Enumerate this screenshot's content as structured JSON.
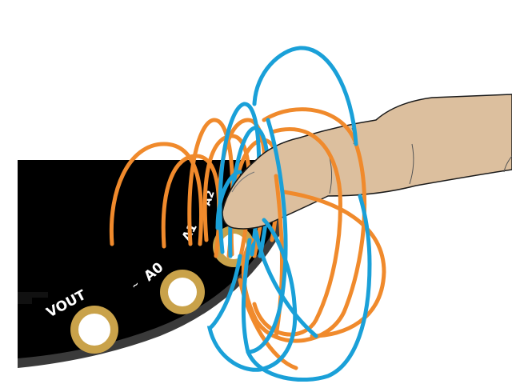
{
  "board": {
    "pad_labels": {
      "vout": "VOUT",
      "a0": "A0",
      "a1": "A1",
      "upper": "A2"
    },
    "colors": {
      "board": "#000000",
      "board_edge": "#3a3a3a",
      "pad_gold": "#c9a24a",
      "silkscreen": "#ffffff"
    }
  },
  "finger": {
    "skin_color": "#dcbf9e",
    "outline_color": "#1a1a1a"
  },
  "field_loops": {
    "colors": [
      "#f08a2c",
      "#1aa0d8"
    ],
    "color_names": [
      "orange",
      "blue"
    ]
  }
}
